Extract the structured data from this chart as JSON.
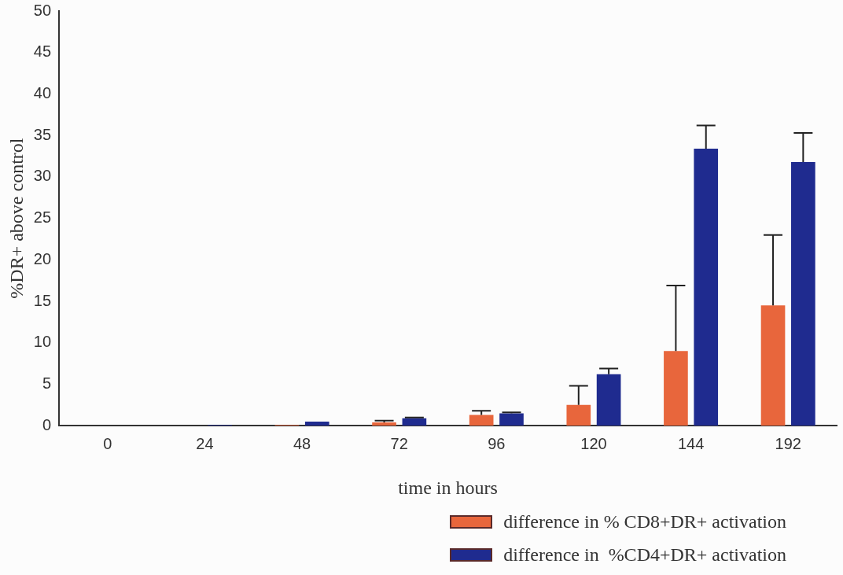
{
  "chart_data": {
    "type": "bar",
    "xlabel": "time in hours",
    "ylabel": "%DR+ above control",
    "categories": [
      "0",
      "24",
      "48",
      "72",
      "96",
      "120",
      "144",
      "192"
    ],
    "series": [
      {
        "name": "difference in % CD8+DR+ activation",
        "color": "#e8663c",
        "values": [
          0,
          0,
          0.1,
          0.4,
          1.3,
          2.5,
          9.0,
          14.5
        ],
        "errors": [
          null,
          null,
          null,
          [
            0.4,
            0.6
          ],
          [
            1.3,
            1.8
          ],
          [
            2.5,
            4.8
          ],
          [
            9.0,
            16.9
          ],
          [
            14.5,
            23.0
          ]
        ]
      },
      {
        "name": "difference in  %CD4+DR+ activation",
        "color": "#1f2b8f",
        "values": [
          0,
          0.1,
          0.5,
          0.9,
          1.5,
          6.2,
          33.4,
          31.8
        ],
        "errors": [
          null,
          null,
          null,
          [
            0.9,
            1.0
          ],
          [
            1.5,
            1.6
          ],
          [
            6.2,
            6.9
          ],
          [
            33.4,
            36.2
          ],
          [
            31.8,
            35.3
          ]
        ]
      }
    ],
    "ylim": [
      0,
      50
    ],
    "yticks": [
      0,
      5,
      10,
      15,
      20,
      25,
      30,
      35,
      40,
      45,
      50
    ],
    "grid": false,
    "legend": "bottom right"
  }
}
